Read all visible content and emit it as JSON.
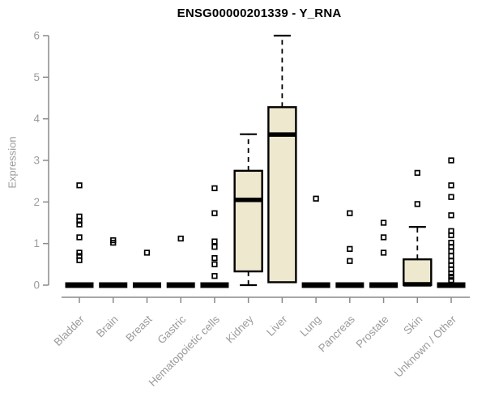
{
  "chart_data": {
    "type": "boxplot",
    "title": "ENSG00000201339 - Y_RNA",
    "ylabel": "Expression",
    "xlabel": "",
    "ylim": [
      0,
      6
    ],
    "yticks": [
      0,
      1,
      2,
      3,
      4,
      5,
      6
    ],
    "grid": false,
    "legend": "none",
    "categories": [
      "Bladder",
      "Brain",
      "Breast",
      "Gastric",
      "Hematopoietic cells",
      "Kidney",
      "Liver",
      "Lung",
      "Pancreas",
      "Prostate",
      "Skin",
      "Unknown / Other"
    ],
    "series": [
      {
        "name": "Bladder",
        "min": 0,
        "q1": 0,
        "median": 0,
        "q3": 0,
        "max": 0,
        "outliers": [
          2.4,
          1.65,
          1.55,
          1.46,
          1.15,
          0.78,
          0.7,
          0.6
        ]
      },
      {
        "name": "Brain",
        "min": 0,
        "q1": 0,
        "median": 0,
        "q3": 0,
        "max": 0,
        "outliers": [
          1.08,
          1.02
        ]
      },
      {
        "name": "Breast",
        "min": 0,
        "q1": 0,
        "median": 0,
        "q3": 0,
        "max": 0,
        "outliers": [
          0.78
        ]
      },
      {
        "name": "Gastric",
        "min": 0,
        "q1": 0,
        "median": 0,
        "q3": 0,
        "max": 0,
        "outliers": [
          1.12
        ]
      },
      {
        "name": "Hematopoietic cells",
        "min": 0,
        "q1": 0,
        "median": 0,
        "q3": 0,
        "max": 0,
        "outliers": [
          2.33,
          1.73,
          1.05,
          0.92,
          0.65,
          0.5,
          0.22
        ]
      },
      {
        "name": "Kidney",
        "min": 0,
        "q1": 0.33,
        "median": 2.05,
        "q3": 2.75,
        "max": 3.63,
        "outliers": []
      },
      {
        "name": "Liver",
        "min": 0.07,
        "q1": 0.07,
        "median": 3.62,
        "q3": 4.28,
        "max": 6.0,
        "outliers": []
      },
      {
        "name": "Lung",
        "min": 0,
        "q1": 0,
        "median": 0,
        "q3": 0,
        "max": 0,
        "outliers": [
          2.08
        ]
      },
      {
        "name": "Pancreas",
        "min": 0,
        "q1": 0,
        "median": 0,
        "q3": 0,
        "max": 0,
        "outliers": [
          1.73,
          0.87,
          0.58
        ]
      },
      {
        "name": "Prostate",
        "min": 0,
        "q1": 0,
        "median": 0,
        "q3": 0,
        "max": 0,
        "outliers": [
          1.5,
          1.15,
          0.78
        ]
      },
      {
        "name": "Skin",
        "min": 0,
        "q1": 0,
        "median": 0.02,
        "q3": 0.62,
        "max": 1.4,
        "outliers": [
          2.7,
          1.95
        ]
      },
      {
        "name": "Unknown / Other",
        "min": 0,
        "q1": 0,
        "median": 0,
        "q3": 0,
        "max": 0,
        "outliers": [
          3.0,
          2.4,
          2.12,
          1.68,
          1.3,
          1.2,
          1.02,
          0.92,
          0.82,
          0.7,
          0.58,
          0.48,
          0.38,
          0.28,
          0.2,
          0.12
        ]
      }
    ],
    "colors": {
      "box_fill": "#EDE8CE",
      "box_border": "#000000",
      "median": "#000000",
      "outlier": "#000000",
      "axis_line": "#8a8a8a",
      "tick_label": "#9b9b9b",
      "title": "#000000",
      "background": "#ffffff"
    }
  }
}
